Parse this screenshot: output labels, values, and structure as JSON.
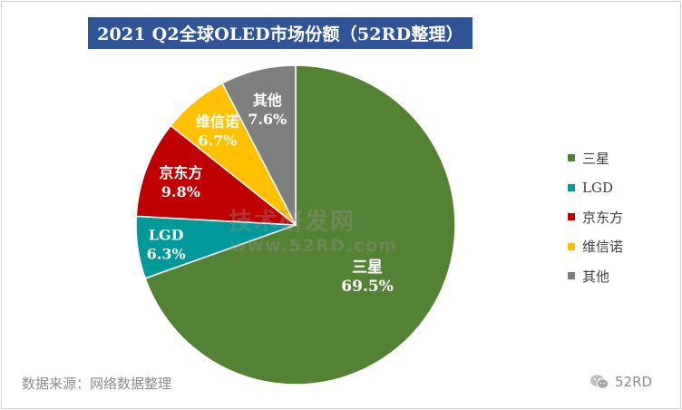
{
  "chart_data": {
    "type": "pie",
    "title": "2021 Q2全球OLED市场份额（52RD整理）",
    "categories": [
      "三星",
      "LGD",
      "京东方",
      "维信诺",
      "其他"
    ],
    "values": [
      69.5,
      6.3,
      9.8,
      6.7,
      7.6
    ],
    "value_labels": [
      "69.5%",
      "6.3%",
      "9.8%",
      "6.7%",
      "7.6%"
    ],
    "colors": [
      "#548235",
      "#009999",
      "#c00000",
      "#ffc000",
      "#7f7f7f"
    ],
    "start_angle_deg": 0,
    "direction": "clockwise",
    "legend_position": "right"
  },
  "watermark": {
    "line1": "技术研发网",
    "line2": "www.52RD.com"
  },
  "footer": {
    "source": "数据来源：网络数据整理",
    "brand": "52RD",
    "brand_icon": "wechat-icon"
  }
}
